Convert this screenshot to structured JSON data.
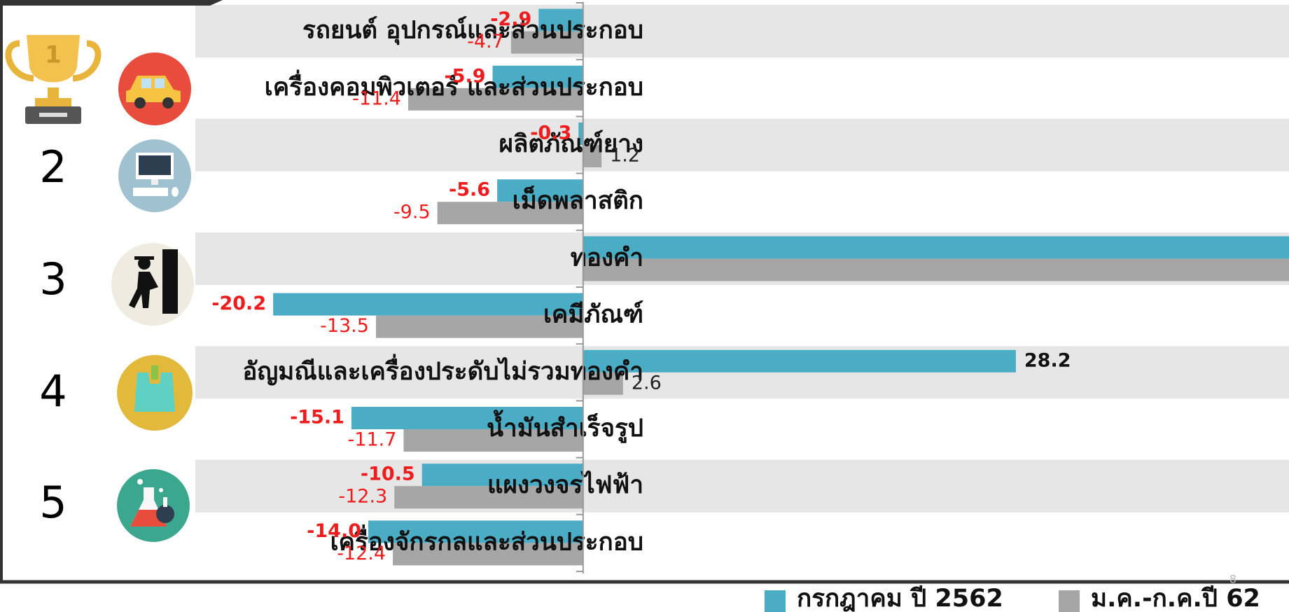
{
  "chart_data": {
    "type": "bar",
    "orientation": "horizontal",
    "categories": [
      "รถยนต์ อุปกรณ์และส่วนประกอบ",
      "เครื่องคอมพิวเตอร์ และส่วนประกอบ",
      "ผลิตภัณฑ์ยาง",
      "เม็ดพลาสติก",
      "ทองคำ",
      "เคมีภัณฑ์",
      "อัญมณีและเครื่องประดับไม่รวมทองคำ",
      "น้ำมันสำเร็จรูป",
      "แผงวงจรไฟฟ้า",
      "เครื่องจักรกลและส่วนประกอบ"
    ],
    "series": [
      {
        "name": "กรกฎาคม ปี 2562",
        "color": "#4bacc6",
        "label_color": "#ee1c1c",
        "positive_label_color": "#111111",
        "values": [
          -2.9,
          -5.9,
          -0.3,
          -5.6,
          50,
          -20.2,
          28.2,
          -15.1,
          -10.5,
          -14.0
        ],
        "value_labels": [
          "-2.9",
          "-5.9",
          "-0.3",
          "-5.6",
          null,
          "-20.2",
          "28.2",
          "-15.1",
          "-10.5",
          "-14.0"
        ]
      },
      {
        "name": "ม.ค.-ก.ค.ปี 62",
        "color": "#a6a6a6",
        "label_color": "#ee1c1c",
        "positive_label_color": "#222222",
        "values": [
          -4.7,
          -11.4,
          1.2,
          -9.5,
          50,
          -13.5,
          2.6,
          -11.7,
          -12.3,
          -12.4
        ],
        "value_labels": [
          "-4.7",
          "-11.4",
          "1.2",
          "-9.5",
          null,
          "-13.5",
          "2.6",
          "-11.7",
          "-12.3",
          "-12.4"
        ]
      }
    ],
    "xlim": [
      -38,
      46
    ],
    "ranks": [
      "1",
      "2",
      "3",
      "4",
      "5"
    ],
    "page_number": "8"
  }
}
